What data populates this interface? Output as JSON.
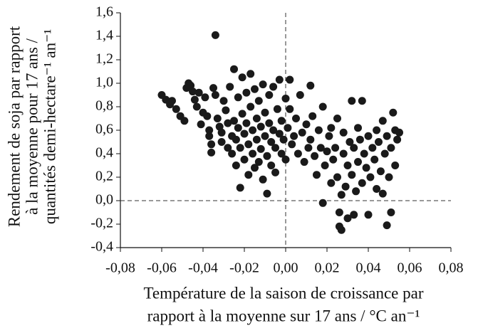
{
  "chart_data": {
    "type": "scatter",
    "y_label_lines": [
      "Rendement de soja par rapport",
      "à la moyenne pour 17 ans /",
      "quantités demi-hectare⁻¹ an⁻¹"
    ],
    "x_label_lines": [
      "Température de la saison de croissance par",
      "rapport à la moyenne sur 17 ans / °C an⁻¹"
    ],
    "color": "#1a1a1a",
    "zero_lines": true,
    "xlim": [
      -0.08,
      0.08
    ],
    "xticks": [
      {
        "value": -0.08,
        "label": "-0,08"
      },
      {
        "value": -0.06,
        "label": "-0,06"
      },
      {
        "value": -0.04,
        "label": "-0,04"
      },
      {
        "value": -0.02,
        "label": "-0,02"
      },
      {
        "value": 0,
        "label": "0,00"
      },
      {
        "value": 0.02,
        "label": "0,02"
      },
      {
        "value": 0.04,
        "label": "0,04"
      },
      {
        "value": 0.06,
        "label": "0,06"
      },
      {
        "value": 0.08,
        "label": "0,08"
      }
    ],
    "ylim": [
      -0.4,
      1.6
    ],
    "yticks": [
      {
        "value": 1.6,
        "label": "1,6"
      },
      {
        "value": 1.4,
        "label": "1,4"
      },
      {
        "value": 1.2,
        "label": "1,2"
      },
      {
        "value": 1.0,
        "label": "1,0"
      },
      {
        "value": 0.8,
        "label": "0,8"
      },
      {
        "value": 0.6,
        "label": "0,6"
      },
      {
        "value": 0.4,
        "label": "0,4"
      },
      {
        "value": 0.2,
        "label": "0,2"
      },
      {
        "value": 0,
        "label": "0,0"
      },
      {
        "value": -0.2,
        "label": "-0,2"
      },
      {
        "value": -0.4,
        "label": "-0,4"
      }
    ],
    "x": [
      -0.06,
      -0.058,
      -0.056,
      -0.055,
      -0.053,
      -0.051,
      -0.049,
      -0.047,
      -0.046,
      -0.045,
      -0.044,
      -0.043,
      -0.042,
      -0.041,
      -0.04,
      -0.039,
      -0.038,
      -0.037,
      -0.037,
      -0.036,
      -0.036,
      -0.035,
      -0.034,
      -0.034,
      -0.033,
      -0.032,
      -0.031,
      -0.031,
      -0.03,
      -0.029,
      -0.028,
      -0.028,
      -0.027,
      -0.026,
      -0.026,
      -0.025,
      -0.025,
      -0.024,
      -0.024,
      -0.023,
      -0.023,
      -0.022,
      -0.022,
      -0.021,
      -0.021,
      -0.02,
      -0.02,
      -0.019,
      -0.019,
      -0.018,
      -0.018,
      -0.017,
      -0.017,
      -0.016,
      -0.016,
      -0.015,
      -0.015,
      -0.014,
      -0.014,
      -0.013,
      -0.013,
      -0.012,
      -0.012,
      -0.011,
      -0.011,
      -0.01,
      -0.01,
      -0.009,
      -0.009,
      -0.008,
      -0.008,
      -0.007,
      -0.007,
      -0.006,
      -0.006,
      -0.005,
      -0.005,
      -0.004,
      -0.003,
      -0.003,
      -0.002,
      -0.002,
      -0.001,
      0.0,
      0.0,
      0.001,
      0.002,
      0.002,
      0.003,
      0.004,
      0.005,
      0.006,
      0.007,
      0.008,
      0.009,
      0.01,
      0.011,
      0.012,
      0.012,
      0.013,
      0.014,
      0.015,
      0.016,
      0.017,
      0.018,
      0.019,
      0.02,
      0.021,
      0.022,
      0.022,
      0.023,
      0.024,
      0.025,
      0.025,
      0.026,
      0.026,
      0.027,
      0.027,
      0.028,
      0.028,
      0.029,
      0.03,
      0.03,
      0.031,
      0.032,
      0.032,
      0.033,
      0.034,
      0.035,
      0.035,
      0.036,
      0.037,
      0.037,
      0.038,
      0.039,
      0.04,
      0.04,
      0.041,
      0.042,
      0.043,
      0.044,
      0.044,
      0.045,
      0.046,
      0.047,
      0.047,
      0.048,
      0.049,
      0.049,
      0.05,
      0.051,
      0.051,
      0.052,
      0.053,
      0.053,
      0.054,
      0.055,
      0.033,
      0.018,
      -0.048
    ],
    "values": [
      0.9,
      0.86,
      0.82,
      0.85,
      0.78,
      0.72,
      0.68,
      1.0,
      0.98,
      0.93,
      0.86,
      0.8,
      0.92,
      0.65,
      0.75,
      0.88,
      0.72,
      0.55,
      0.6,
      0.41,
      0.48,
      0.96,
      0.9,
      1.41,
      0.7,
      0.63,
      0.58,
      0.5,
      0.85,
      0.77,
      0.66,
      0.45,
      0.97,
      0.55,
      0.4,
      1.12,
      0.68,
      0.52,
      0.3,
      0.88,
      0.62,
      0.45,
      0.11,
      1.05,
      0.74,
      0.57,
      0.35,
      0.92,
      0.66,
      0.48,
      0.22,
      1.08,
      0.8,
      0.6,
      0.4,
      0.28,
      0.95,
      0.7,
      0.52,
      0.85,
      0.33,
      0.63,
      0.44,
      0.18,
      0.99,
      0.75,
      0.55,
      0.38,
      0.06,
      0.9,
      0.66,
      0.5,
      0.3,
      0.97,
      0.6,
      0.45,
      0.24,
      0.78,
      0.57,
      1.03,
      0.4,
      0.68,
      0.52,
      0.87,
      0.35,
      0.62,
      0.78,
      1.03,
      0.48,
      0.55,
      0.7,
      0.4,
      0.9,
      0.58,
      0.33,
      0.65,
      0.45,
      0.52,
      0.98,
      0.72,
      0.38,
      0.22,
      0.6,
      0.45,
      0.8,
      0.3,
      0.42,
      0.55,
      0.15,
      0.62,
      0.35,
      0.45,
      0.2,
      0.7,
      -0.1,
      -0.22,
      0.05,
      -0.25,
      0.4,
      0.58,
      0.12,
      0.3,
      -0.15,
      0.5,
      0.85,
      0.22,
      0.45,
      0.08,
      0.62,
      0.33,
      0.52,
      0.85,
      0.15,
      0.4,
      0.28,
      0.55,
      -0.12,
      0.2,
      0.45,
      0.35,
      0.6,
      0.1,
      0.5,
      0.25,
      0.68,
      0.06,
      0.4,
      -0.21,
      0.55,
      0.2,
      0.45,
      -0.1,
      0.75,
      0.3,
      0.6,
      0.52,
      0.58,
      -0.12,
      -0.02,
      0.96
    ]
  }
}
